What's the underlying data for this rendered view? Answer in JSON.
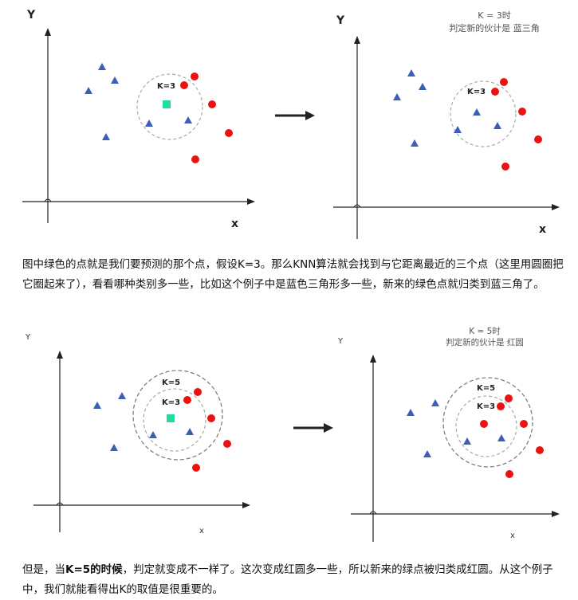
{
  "colors": {
    "red": "#ee1111",
    "blue": "#3b5fb8",
    "green": "#22dd99",
    "axis": "#222222",
    "circle": "#aaaaaa"
  },
  "panels": [
    {
      "id": "top-left",
      "y_label": "Y",
      "x_label": "x",
      "k_labels": [
        "K=3"
      ],
      "caption": []
    },
    {
      "id": "top-right",
      "y_label": "Y",
      "x_label": "x",
      "k_labels": [
        "K=3"
      ],
      "caption": [
        "K = 3时",
        "判定新的伙计是 蓝三角"
      ]
    },
    {
      "id": "bottom-left",
      "y_label": "Y",
      "x_label": "x",
      "k_labels": [
        "K=5",
        "K=3"
      ],
      "caption": []
    },
    {
      "id": "bottom-right",
      "y_label": "Y",
      "x_label": "x",
      "k_labels": [
        "K=5",
        "K=3"
      ],
      "caption": [
        "K = 5时",
        "判定新的伙计是 红圆"
      ]
    }
  ],
  "paragraph1": "图中绿色的点就是我们要预测的那个点，假设K=3。那么KNN算法就会找到与它距离最近的三个点（这里用圆圈把它圈起来了），看看哪种类别多一些，比如这个例子中是蓝色三角形多一些，新来的绿色点就归类到蓝三角了。",
  "paragraph2": {
    "before": "但是，当",
    "bold": "K=5的时候",
    "after": "，判定就变成不一样了。这次变成红圆多一些，所以新来的绿点被归类成红圆。从这个例子中，我们就能看得出K的取值是很重要的。"
  }
}
